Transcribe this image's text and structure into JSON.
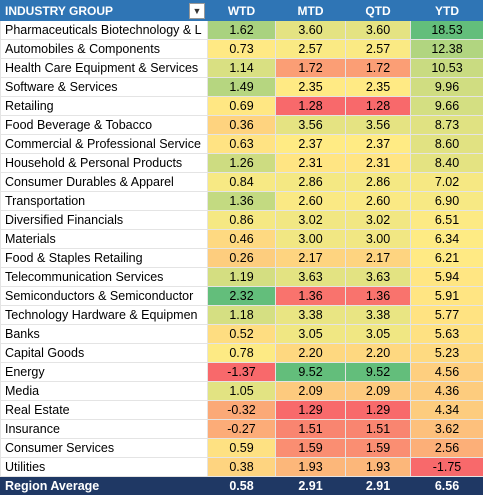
{
  "header": {
    "columns": [
      "INDUSTRY GROUP",
      "WTD",
      "MTD",
      "QTD",
      "YTD"
    ]
  },
  "rows": [
    {
      "name": "Pharmaceuticals Biotechnology & L",
      "values": [
        "1.62",
        "3.60",
        "3.60",
        "18.53"
      ]
    },
    {
      "name": "Automobiles & Components",
      "values": [
        "0.73",
        "2.57",
        "2.57",
        "12.38"
      ]
    },
    {
      "name": "Health Care Equipment & Services",
      "values": [
        "1.14",
        "1.72",
        "1.72",
        "10.53"
      ]
    },
    {
      "name": "Software & Services",
      "values": [
        "1.49",
        "2.35",
        "2.35",
        "9.96"
      ]
    },
    {
      "name": "Retailing",
      "values": [
        "0.69",
        "1.28",
        "1.28",
        "9.66"
      ]
    },
    {
      "name": "Food Beverage & Tobacco",
      "values": [
        "0.36",
        "3.56",
        "3.56",
        "8.73"
      ]
    },
    {
      "name": "Commercial & Professional Service",
      "values": [
        "0.63",
        "2.37",
        "2.37",
        "8.60"
      ]
    },
    {
      "name": "Household & Personal Products",
      "values": [
        "1.26",
        "2.31",
        "2.31",
        "8.40"
      ]
    },
    {
      "name": "Consumer Durables & Apparel",
      "values": [
        "0.84",
        "2.86",
        "2.86",
        "7.02"
      ]
    },
    {
      "name": "Transportation",
      "values": [
        "1.36",
        "2.60",
        "2.60",
        "6.90"
      ]
    },
    {
      "name": "Diversified Financials",
      "values": [
        "0.86",
        "3.02",
        "3.02",
        "6.51"
      ]
    },
    {
      "name": "Materials",
      "values": [
        "0.46",
        "3.00",
        "3.00",
        "6.34"
      ]
    },
    {
      "name": "Food & Staples Retailing",
      "values": [
        "0.26",
        "2.17",
        "2.17",
        "6.21"
      ]
    },
    {
      "name": "Telecommunication Services",
      "values": [
        "1.19",
        "3.63",
        "3.63",
        "5.94"
      ]
    },
    {
      "name": "Semiconductors & Semiconductor",
      "values": [
        "2.32",
        "1.36",
        "1.36",
        "5.91"
      ]
    },
    {
      "name": "Technology Hardware & Equipmen",
      "values": [
        "1.18",
        "3.38",
        "3.38",
        "5.77"
      ]
    },
    {
      "name": "Banks",
      "values": [
        "0.52",
        "3.05",
        "3.05",
        "5.63"
      ]
    },
    {
      "name": "Capital Goods",
      "values": [
        "0.78",
        "2.20",
        "2.20",
        "5.23"
      ]
    },
    {
      "name": "Energy",
      "values": [
        "-1.37",
        "9.52",
        "9.52",
        "4.56"
      ]
    },
    {
      "name": "Media",
      "values": [
        "1.05",
        "2.09",
        "2.09",
        "4.36"
      ]
    },
    {
      "name": "Real Estate",
      "values": [
        "-0.32",
        "1.29",
        "1.29",
        "4.34"
      ]
    },
    {
      "name": "Insurance",
      "values": [
        "-0.27",
        "1.51",
        "1.51",
        "3.62"
      ]
    },
    {
      "name": "Consumer Services",
      "values": [
        "0.59",
        "1.59",
        "1.59",
        "2.56"
      ]
    },
    {
      "name": "Utilities",
      "values": [
        "0.38",
        "1.93",
        "1.93",
        "-1.75"
      ]
    }
  ],
  "footer": {
    "label": "Region Average",
    "values": [
      "0.58",
      "2.91",
      "2.91",
      "6.56"
    ]
  }
}
